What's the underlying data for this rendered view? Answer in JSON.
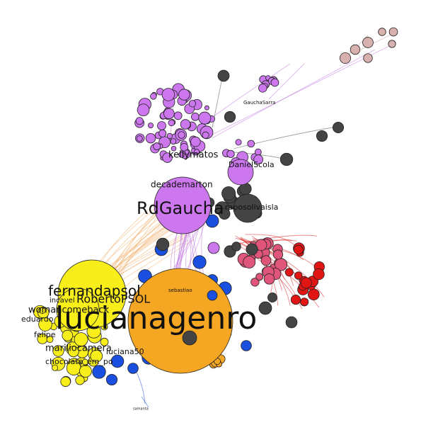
{
  "graph": {
    "labels": {
      "hub_main": "lucianagenro",
      "hub_purple": "RdGaucha",
      "hub_yellow": "fernandapsol",
      "kellymatos": "kellymatos",
      "decademarton": "decademarton",
      "danielscola": "DanielScola",
      "gauchasarra": "GauchaSarra",
      "robertopsol": "RobertoPSOL",
      "womancomeback": "womancomeback",
      "eduardo": "eduardo",
      "mariliocamera": "mariliocamera",
      "chocolate": "chocolate_em_po",
      "raposolivaisla": "raposolivaisla",
      "sebastiao": "sebastiao",
      "luciana50": "luciana50",
      "incaver": "incavel",
      "felipe": "felipe",
      "samanta": "samanta"
    },
    "colors": {
      "orange": "#f5a623",
      "yellow": "#f7ee1a",
      "purple": "#cc77ee",
      "dark": "#444444",
      "pink": "#e0557a",
      "red": "#e21515",
      "blue": "#1a4fe0",
      "tan": "#d8b0ad",
      "edge_orange": "#f0b070",
      "edge_purple": "#c077e0",
      "edge_red": "#dd2222",
      "edge_dark": "#555555"
    }
  }
}
